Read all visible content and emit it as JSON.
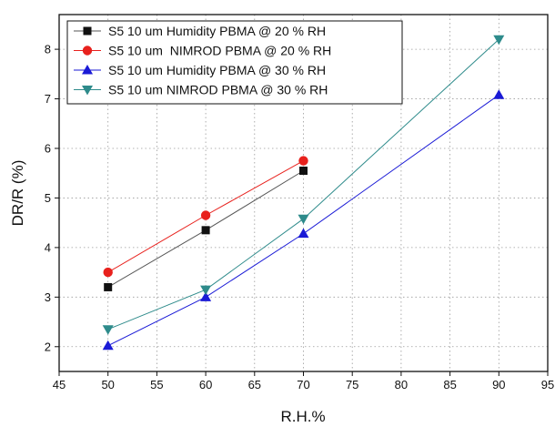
{
  "chart_data": {
    "type": "line",
    "xlabel": "R.H.%",
    "ylabel": "DR/R (%)",
    "xlim": [
      45,
      95
    ],
    "ylim": [
      1.5,
      8.7
    ],
    "xticks": [
      45,
      50,
      55,
      60,
      65,
      70,
      75,
      80,
      85,
      90,
      95
    ],
    "yticks": [
      2,
      3,
      4,
      5,
      6,
      7,
      8
    ],
    "grid": true,
    "legend_position": "top-left",
    "series": [
      {
        "name": "S5 10 um Humidity PBMA @ 20 % RH",
        "marker": "square",
        "color": "#111111",
        "line_color": "#555555",
        "x": [
          50,
          60,
          70
        ],
        "y": [
          3.2,
          4.35,
          5.55
        ]
      },
      {
        "name": "S5 10 um  NIMROD PBMA @ 20 % RH",
        "marker": "circle",
        "color": "#e8211d",
        "line_color": "#e8211d",
        "x": [
          50,
          60,
          70
        ],
        "y": [
          3.5,
          4.65,
          5.75
        ]
      },
      {
        "name": "S5 10 um Humidity PBMA @ 30 % RH",
        "marker": "triangle-up",
        "color": "#1a1ad6",
        "line_color": "#1a1ad6",
        "x": [
          50,
          60,
          70,
          90
        ],
        "y": [
          2.02,
          3.0,
          4.28,
          7.08
        ]
      },
      {
        "name": "S5 10 um NIMROD PBMA @ 30 % RH",
        "marker": "triangle-down",
        "color": "#2e8b8b",
        "line_color": "#2e8b8b",
        "x": [
          50,
          60,
          70,
          90
        ],
        "y": [
          2.35,
          3.15,
          4.58,
          8.2
        ]
      }
    ]
  }
}
